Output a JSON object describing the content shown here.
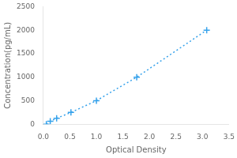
{
  "chart_data": {
    "type": "line",
    "xlabel": "Optical Density",
    "ylabel": "Concentration(pg/mL)",
    "x": [
      0.056,
      0.13,
      0.25,
      0.52,
      1.0,
      1.76,
      3.08
    ],
    "values": [
      0,
      62.5,
      125,
      250,
      500,
      1000,
      2000
    ],
    "xlim": [
      0,
      3.5
    ],
    "ylim": [
      0,
      2500
    ],
    "xticks": [
      {
        "value": 0,
        "label": "0.0"
      },
      0.5,
      {
        "value": 1.0,
        "label": "1.0"
      },
      1.5,
      {
        "value": 2.0,
        "label": "2.0"
      },
      2.5,
      {
        "value": 3.0,
        "label": "3.0"
      },
      3.5
    ],
    "yticks": [
      0,
      500,
      1000,
      1500,
      2000,
      2500
    ],
    "marker": "plus",
    "line_style": "dotted",
    "grid": false
  }
}
